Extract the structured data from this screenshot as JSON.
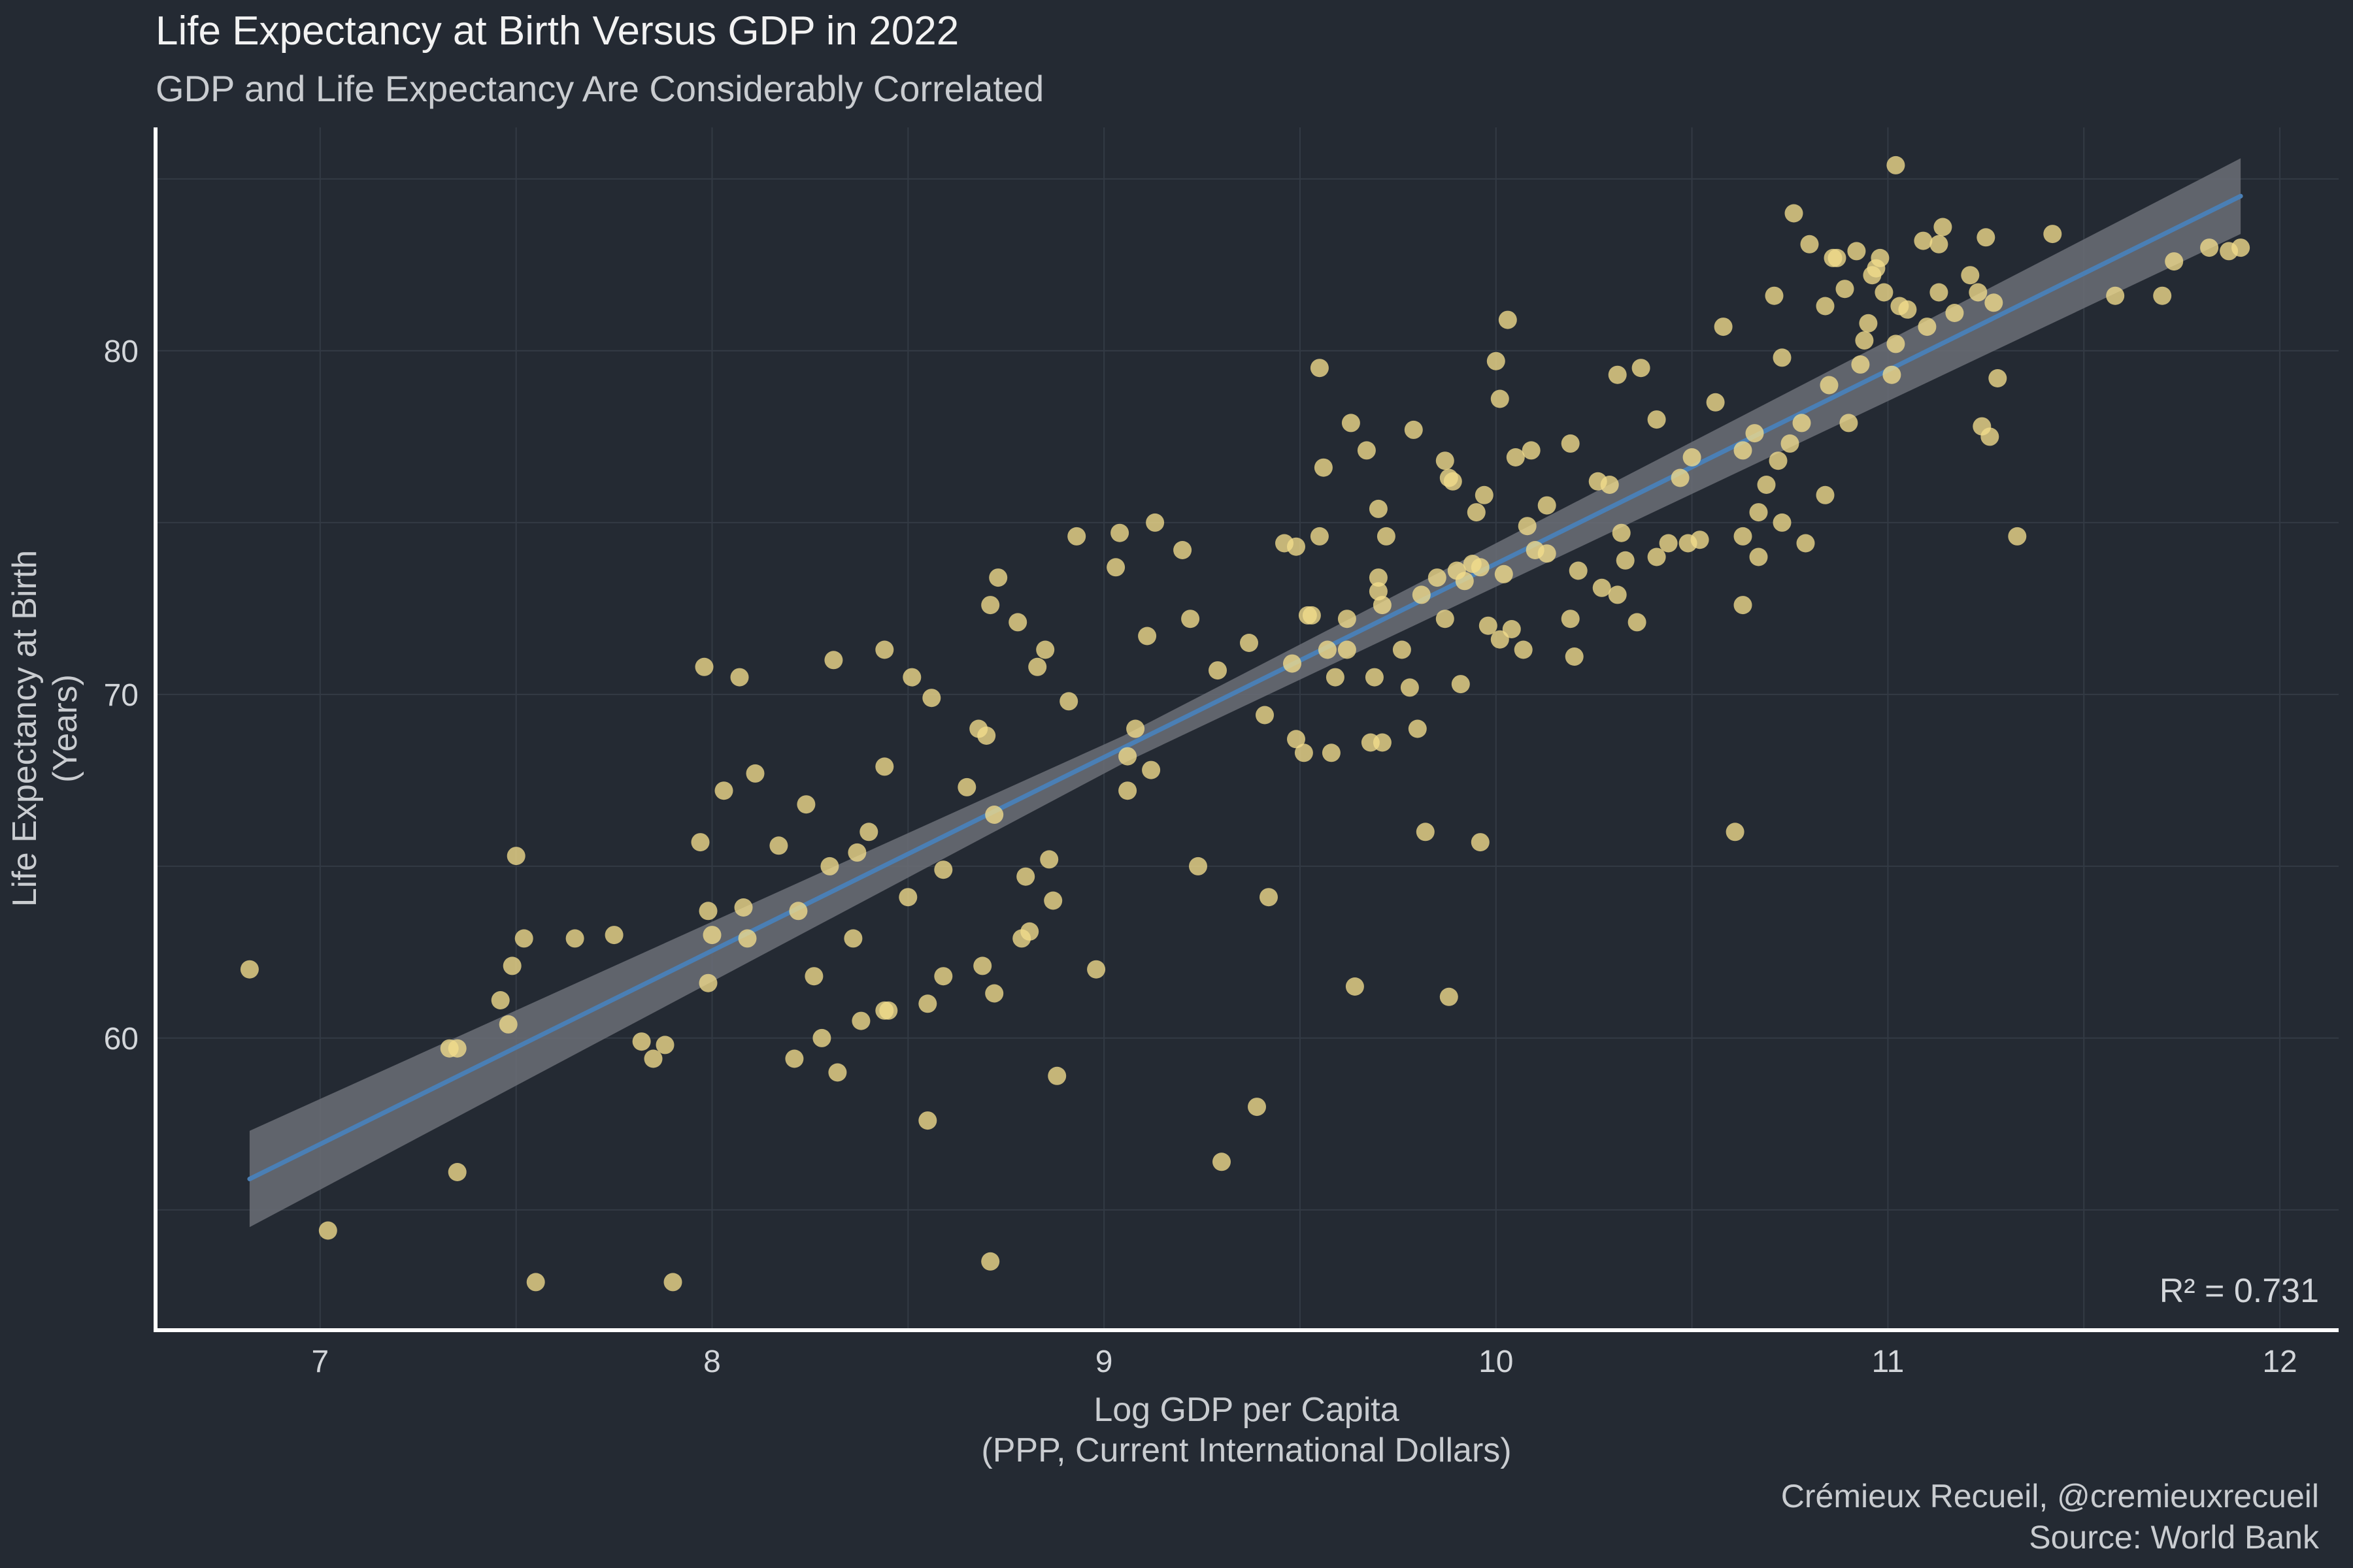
{
  "colors": {
    "background": "#242a33",
    "point_fill": "#f2dc8c",
    "fit_line": "#4a7fb5",
    "ci_band": "#6b6f77",
    "axis": "#ffffff",
    "grid": "#333a44",
    "text": "#d3d6da"
  },
  "chart_data": {
    "type": "scatter",
    "title": "Life Expectancy at Birth Versus GDP in 2022",
    "subtitle": "GDP and Life Expectancy Are Considerably Correlated",
    "xlabel": [
      "Log GDP per Capita",
      "(PPP, Current International Dollars)"
    ],
    "ylabel": [
      "Life Expectancy at Birth",
      "(Years)"
    ],
    "caption": [
      "Crémieux Recueil, @cremieuxrecueil",
      "Source: World Bank"
    ],
    "annotation": "R² = 0.731",
    "xlim": [
      6.58,
      12.15
    ],
    "ylim": [
      51.5,
      86.5
    ],
    "x_ticks": [
      7,
      8,
      9,
      10,
      11,
      12
    ],
    "x_tick_labels": [
      "7",
      "8",
      "9",
      "10",
      "11",
      "12"
    ],
    "y_ticks": [
      60,
      70,
      80
    ],
    "y_tick_labels": [
      "60",
      "70",
      "80"
    ],
    "grid": true,
    "legend": "none",
    "fit": {
      "x_start": 6.82,
      "y_start": 55.9,
      "x_end": 11.9,
      "y_end": 84.5,
      "ci_start": [
        54.5,
        57.3
      ],
      "ci_mid": [
        68.0,
        68.8
      ],
      "ci_end": [
        83.4,
        85.6
      ],
      "x_mid": 9.05
    },
    "points": [
      [
        6.82,
        62.0
      ],
      [
        7.02,
        54.4
      ],
      [
        7.33,
        59.7
      ],
      [
        7.35,
        59.7
      ],
      [
        7.35,
        56.1
      ],
      [
        7.46,
        61.1
      ],
      [
        7.48,
        60.4
      ],
      [
        7.49,
        62.1
      ],
      [
        7.5,
        65.3
      ],
      [
        7.52,
        62.9
      ],
      [
        7.55,
        52.9
      ],
      [
        7.65,
        62.9
      ],
      [
        7.75,
        63.0
      ],
      [
        7.82,
        59.9
      ],
      [
        7.85,
        59.4
      ],
      [
        7.88,
        59.8
      ],
      [
        7.9,
        52.9
      ],
      [
        7.97,
        65.7
      ],
      [
        7.98,
        70.8
      ],
      [
        7.99,
        63.7
      ],
      [
        7.99,
        61.6
      ],
      [
        8.0,
        63.0
      ],
      [
        8.03,
        67.2
      ],
      [
        8.07,
        70.5
      ],
      [
        8.08,
        63.8
      ],
      [
        8.09,
        62.9
      ],
      [
        8.11,
        67.7
      ],
      [
        8.17,
        65.6
      ],
      [
        8.21,
        59.4
      ],
      [
        8.22,
        63.7
      ],
      [
        8.24,
        66.8
      ],
      [
        8.26,
        61.8
      ],
      [
        8.28,
        60.0
      ],
      [
        8.3,
        65.0
      ],
      [
        8.31,
        71.0
      ],
      [
        8.32,
        59.0
      ],
      [
        8.36,
        62.9
      ],
      [
        8.37,
        65.4
      ],
      [
        8.38,
        60.5
      ],
      [
        8.4,
        66.0
      ],
      [
        8.44,
        67.9
      ],
      [
        8.44,
        71.3
      ],
      [
        8.44,
        60.8
      ],
      [
        8.45,
        60.8
      ],
      [
        8.5,
        64.1
      ],
      [
        8.51,
        70.5
      ],
      [
        8.55,
        61.0
      ],
      [
        8.55,
        57.6
      ],
      [
        8.56,
        69.9
      ],
      [
        8.59,
        64.9
      ],
      [
        8.59,
        61.8
      ],
      [
        8.65,
        67.3
      ],
      [
        8.68,
        69.0
      ],
      [
        8.69,
        62.1
      ],
      [
        8.7,
        68.8
      ],
      [
        8.71,
        72.6
      ],
      [
        8.72,
        66.5
      ],
      [
        8.73,
        73.4
      ],
      [
        8.72,
        61.3
      ],
      [
        8.71,
        53.5
      ],
      [
        8.78,
        72.1
      ],
      [
        8.79,
        62.9
      ],
      [
        8.8,
        64.7
      ],
      [
        8.81,
        63.1
      ],
      [
        8.83,
        70.8
      ],
      [
        8.85,
        71.3
      ],
      [
        8.86,
        65.2
      ],
      [
        8.87,
        64.0
      ],
      [
        8.88,
        58.9
      ],
      [
        8.91,
        69.8
      ],
      [
        8.93,
        74.6
      ],
      [
        8.98,
        62.0
      ],
      [
        9.03,
        73.7
      ],
      [
        9.04,
        74.7
      ],
      [
        9.06,
        68.2
      ],
      [
        9.06,
        67.2
      ],
      [
        9.08,
        69.0
      ],
      [
        9.11,
        71.7
      ],
      [
        9.12,
        67.8
      ],
      [
        9.13,
        75.0
      ],
      [
        9.2,
        74.2
      ],
      [
        9.22,
        72.2
      ],
      [
        9.24,
        65.0
      ],
      [
        9.29,
        70.7
      ],
      [
        9.3,
        56.4
      ],
      [
        9.37,
        71.5
      ],
      [
        9.39,
        58.0
      ],
      [
        9.41,
        69.4
      ],
      [
        9.42,
        64.1
      ],
      [
        9.46,
        74.4
      ],
      [
        9.48,
        70.9
      ],
      [
        9.49,
        74.3
      ],
      [
        9.49,
        68.7
      ],
      [
        9.51,
        68.3
      ],
      [
        9.52,
        72.3
      ],
      [
        9.53,
        72.3
      ],
      [
        9.55,
        79.5
      ],
      [
        9.55,
        74.6
      ],
      [
        9.56,
        76.6
      ],
      [
        9.57,
        71.3
      ],
      [
        9.58,
        68.3
      ],
      [
        9.59,
        70.5
      ],
      [
        9.62,
        71.3
      ],
      [
        9.62,
        72.2
      ],
      [
        9.63,
        77.9
      ],
      [
        9.64,
        61.5
      ],
      [
        9.67,
        77.1
      ],
      [
        9.68,
        68.6
      ],
      [
        9.69,
        70.5
      ],
      [
        9.7,
        75.4
      ],
      [
        9.7,
        73.4
      ],
      [
        9.7,
        73.0
      ],
      [
        9.71,
        72.6
      ],
      [
        9.71,
        68.6
      ],
      [
        9.72,
        74.6
      ],
      [
        9.76,
        71.3
      ],
      [
        9.78,
        70.2
      ],
      [
        9.79,
        77.7
      ],
      [
        9.8,
        69.0
      ],
      [
        9.81,
        72.9
      ],
      [
        9.82,
        66.0
      ],
      [
        9.85,
        73.4
      ],
      [
        9.87,
        72.2
      ],
      [
        9.87,
        76.8
      ],
      [
        9.88,
        76.3
      ],
      [
        9.88,
        61.2
      ],
      [
        9.89,
        76.2
      ],
      [
        9.9,
        73.6
      ],
      [
        9.91,
        70.3
      ],
      [
        9.92,
        73.3
      ],
      [
        9.94,
        73.8
      ],
      [
        9.95,
        75.3
      ],
      [
        9.96,
        73.7
      ],
      [
        9.96,
        65.7
      ],
      [
        9.97,
        75.8
      ],
      [
        9.98,
        72.0
      ],
      [
        10.0,
        79.7
      ],
      [
        10.01,
        71.6
      ],
      [
        10.01,
        78.6
      ],
      [
        10.02,
        73.5
      ],
      [
        10.03,
        80.9
      ],
      [
        10.04,
        71.9
      ],
      [
        10.05,
        76.9
      ],
      [
        10.07,
        71.3
      ],
      [
        10.08,
        74.9
      ],
      [
        10.09,
        77.1
      ],
      [
        10.1,
        74.2
      ],
      [
        10.13,
        75.5
      ],
      [
        10.13,
        74.1
      ],
      [
        10.19,
        77.3
      ],
      [
        10.19,
        72.2
      ],
      [
        10.2,
        71.1
      ],
      [
        10.21,
        73.6
      ],
      [
        10.26,
        76.2
      ],
      [
        10.27,
        73.1
      ],
      [
        10.29,
        76.1
      ],
      [
        10.31,
        72.9
      ],
      [
        10.31,
        79.3
      ],
      [
        10.32,
        74.7
      ],
      [
        10.33,
        73.9
      ],
      [
        10.36,
        72.1
      ],
      [
        10.37,
        79.5
      ],
      [
        10.41,
        78.0
      ],
      [
        10.41,
        74.0
      ],
      [
        10.44,
        74.4
      ],
      [
        10.47,
        76.3
      ],
      [
        10.49,
        74.4
      ],
      [
        10.5,
        76.9
      ],
      [
        10.52,
        74.5
      ],
      [
        10.56,
        78.5
      ],
      [
        10.58,
        80.7
      ],
      [
        10.61,
        66.0
      ],
      [
        10.63,
        77.1
      ],
      [
        10.63,
        72.6
      ],
      [
        10.63,
        74.6
      ],
      [
        10.66,
        77.6
      ],
      [
        10.67,
        75.3
      ],
      [
        10.67,
        74.0
      ],
      [
        10.69,
        76.1
      ],
      [
        10.71,
        81.6
      ],
      [
        10.72,
        76.8
      ],
      [
        10.73,
        75.0
      ],
      [
        10.73,
        79.8
      ],
      [
        10.75,
        77.3
      ],
      [
        10.76,
        84.0
      ],
      [
        10.78,
        77.9
      ],
      [
        10.79,
        74.4
      ],
      [
        10.8,
        83.1
      ],
      [
        10.84,
        75.8
      ],
      [
        10.84,
        81.3
      ],
      [
        10.85,
        79.0
      ],
      [
        10.86,
        82.7
      ],
      [
        10.87,
        82.7
      ],
      [
        10.89,
        81.8
      ],
      [
        10.9,
        77.9
      ],
      [
        10.92,
        82.9
      ],
      [
        10.93,
        79.6
      ],
      [
        10.94,
        80.3
      ],
      [
        10.95,
        80.8
      ],
      [
        10.96,
        82.2
      ],
      [
        10.97,
        82.4
      ],
      [
        10.98,
        82.7
      ],
      [
        10.99,
        81.7
      ],
      [
        11.01,
        79.3
      ],
      [
        11.02,
        80.2
      ],
      [
        11.02,
        85.4
      ],
      [
        11.03,
        81.3
      ],
      [
        11.05,
        81.2
      ],
      [
        11.09,
        83.2
      ],
      [
        11.1,
        80.7
      ],
      [
        11.13,
        83.1
      ],
      [
        11.13,
        81.7
      ],
      [
        11.14,
        83.6
      ],
      [
        11.17,
        81.1
      ],
      [
        11.21,
        82.2
      ],
      [
        11.23,
        81.7
      ],
      [
        11.24,
        77.8
      ],
      [
        11.25,
        83.3
      ],
      [
        11.26,
        77.5
      ],
      [
        11.27,
        81.4
      ],
      [
        11.28,
        79.2
      ],
      [
        11.33,
        74.6
      ],
      [
        11.42,
        83.4
      ],
      [
        11.58,
        81.6
      ],
      [
        11.7,
        81.6
      ],
      [
        11.73,
        82.6
      ],
      [
        11.82,
        83.0
      ],
      [
        11.87,
        82.9
      ],
      [
        11.9,
        83.0
      ]
    ]
  }
}
